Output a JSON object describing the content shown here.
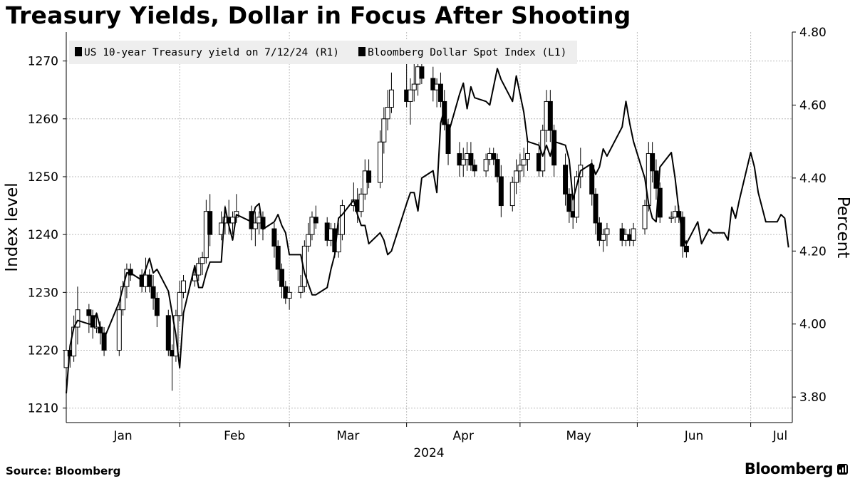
{
  "title": "Treasury Yields, Dollar in Focus After Shooting",
  "source": "Source: Bloomberg",
  "brand": "Bloomberg",
  "colors": {
    "line": "#000000",
    "up_candle_fill": "#ffffff",
    "down_candle_fill": "#000000",
    "grid": "#bbbbbb",
    "legend_bg": "#eeeeee"
  },
  "chart_data": {
    "type": "line",
    "title": "Treasury Yields, Dollar in Focus After Shooting",
    "legend": {
      "placement": "top-left",
      "entries": [
        "US 10-year Treasury yield on 7/12/24 (R1)",
        "Bloomberg Dollar Spot Index (L1)"
      ]
    },
    "grid": true,
    "x_axis": {
      "labels": [
        "Jan",
        "Feb",
        "Mar",
        "Apr",
        "May",
        "Jun",
        "Jul"
      ],
      "year_label": "2024",
      "range": [
        "2024-01-02",
        "2024-07-12"
      ]
    },
    "y_left": {
      "label": "Index level",
      "ticks": [
        1210,
        1220,
        1230,
        1240,
        1250,
        1260,
        1270
      ],
      "range": [
        1207.5,
        1275
      ]
    },
    "y_right": {
      "label": "Percent",
      "ticks": [
        "3.80",
        "4.00",
        "4.20",
        "4.40",
        "4.60",
        "4.80"
      ],
      "range": [
        3.73,
        4.8
      ]
    },
    "series": [
      {
        "name": "US 10-year Treasury yield on 7/12/24 (R1)",
        "axis": "right",
        "kind": "line",
        "dates": [
          "2024-01-02",
          "2024-01-03",
          "2024-01-04",
          "2024-01-05",
          "2024-01-08",
          "2024-01-09",
          "2024-01-10",
          "2024-01-11",
          "2024-01-12",
          "2024-01-16",
          "2024-01-17",
          "2024-01-18",
          "2024-01-19",
          "2024-01-22",
          "2024-01-23",
          "2024-01-24",
          "2024-01-25",
          "2024-01-26",
          "2024-01-29",
          "2024-01-30",
          "2024-01-31",
          "2024-02-01",
          "2024-02-02",
          "2024-02-05",
          "2024-02-06",
          "2024-02-07",
          "2024-02-08",
          "2024-02-09",
          "2024-02-12",
          "2024-02-13",
          "2024-02-14",
          "2024-02-15",
          "2024-02-16",
          "2024-02-20",
          "2024-02-21",
          "2024-02-22",
          "2024-02-23",
          "2024-02-26",
          "2024-02-27",
          "2024-02-28",
          "2024-02-29",
          "2024-03-01",
          "2024-03-04",
          "2024-03-05",
          "2024-03-06",
          "2024-03-07",
          "2024-03-08",
          "2024-03-11",
          "2024-03-12",
          "2024-03-13",
          "2024-03-14",
          "2024-03-15",
          "2024-03-18",
          "2024-03-19",
          "2024-03-20",
          "2024-03-21",
          "2024-03-22",
          "2024-03-25",
          "2024-03-26",
          "2024-03-27",
          "2024-03-28",
          "2024-04-01",
          "2024-04-02",
          "2024-04-03",
          "2024-04-04",
          "2024-04-05",
          "2024-04-08",
          "2024-04-09",
          "2024-04-10",
          "2024-04-11",
          "2024-04-12",
          "2024-04-15",
          "2024-04-16",
          "2024-04-17",
          "2024-04-18",
          "2024-04-19",
          "2024-04-22",
          "2024-04-23",
          "2024-04-24",
          "2024-04-25",
          "2024-04-26",
          "2024-04-29",
          "2024-04-30",
          "2024-05-01",
          "2024-05-02",
          "2024-05-03",
          "2024-05-06",
          "2024-05-07",
          "2024-05-08",
          "2024-05-09",
          "2024-05-10",
          "2024-05-13",
          "2024-05-14",
          "2024-05-15",
          "2024-05-16",
          "2024-05-17",
          "2024-05-20",
          "2024-05-21",
          "2024-05-22",
          "2024-05-23",
          "2024-05-24",
          "2024-05-28",
          "2024-05-29",
          "2024-05-30",
          "2024-05-31",
          "2024-06-03",
          "2024-06-04",
          "2024-06-05",
          "2024-06-06",
          "2024-06-07",
          "2024-06-10",
          "2024-06-11",
          "2024-06-12",
          "2024-06-13",
          "2024-06-14",
          "2024-06-17",
          "2024-06-18",
          "2024-06-20",
          "2024-06-21",
          "2024-06-24",
          "2024-06-25",
          "2024-06-26",
          "2024-06-27",
          "2024-06-28",
          "2024-07-01",
          "2024-07-02",
          "2024-07-03",
          "2024-07-05",
          "2024-07-08",
          "2024-07-09",
          "2024-07-10",
          "2024-07-11"
        ],
        "values": [
          3.81,
          3.94,
          3.99,
          4.01,
          4.0,
          4.0,
          4.03,
          3.99,
          3.96,
          4.06,
          4.1,
          4.14,
          4.14,
          4.12,
          4.15,
          4.18,
          4.14,
          4.15,
          4.09,
          4.03,
          3.97,
          3.88,
          4.03,
          4.16,
          4.1,
          4.1,
          4.14,
          4.17,
          4.17,
          4.32,
          4.27,
          4.23,
          4.3,
          4.28,
          4.32,
          4.33,
          4.26,
          4.28,
          4.3,
          4.27,
          4.25,
          4.19,
          4.19,
          4.14,
          4.11,
          4.08,
          4.08,
          4.1,
          4.15,
          4.19,
          4.29,
          4.3,
          4.34,
          4.3,
          4.27,
          4.27,
          4.22,
          4.25,
          4.23,
          4.19,
          4.2,
          4.33,
          4.36,
          4.36,
          4.31,
          4.4,
          4.42,
          4.36,
          4.55,
          4.59,
          4.52,
          4.63,
          4.66,
          4.59,
          4.65,
          4.62,
          4.61,
          4.6,
          4.65,
          4.7,
          4.67,
          4.61,
          4.68,
          4.63,
          4.58,
          4.5,
          4.49,
          4.46,
          4.49,
          4.46,
          4.5,
          4.49,
          4.45,
          4.34,
          4.38,
          4.42,
          4.44,
          4.41,
          4.43,
          4.48,
          4.46,
          4.54,
          4.61,
          4.55,
          4.5,
          4.4,
          4.33,
          4.29,
          4.28,
          4.43,
          4.47,
          4.4,
          4.31,
          4.24,
          4.22,
          4.28,
          4.22,
          4.26,
          4.25,
          4.25,
          4.23,
          4.32,
          4.29,
          4.34,
          4.47,
          4.43,
          4.36,
          4.28,
          4.28,
          4.3,
          4.29,
          4.21
        ],
        "last_value": 4.21
      },
      {
        "name": "Bloomberg Dollar Spot Index (L1)",
        "axis": "left",
        "kind": "candlestick",
        "note": "daily candles; hollow = close above open, filled = close below open",
        "approx_ohlc_daily": [
          [
            1217,
            1222,
            1216,
            1220
          ],
          [
            1220,
            1221,
            1217,
            1219
          ],
          [
            1219,
            1226,
            1218,
            1224
          ],
          [
            1224,
            1231,
            1221,
            1227
          ],
          [
            1227,
            1228,
            1223,
            1226
          ],
          [
            1226,
            1227,
            1222,
            1224
          ],
          [
            1224,
            1226,
            1223,
            1224
          ],
          [
            1224,
            1225,
            1221,
            1223
          ],
          [
            1223,
            1224,
            1219,
            1220
          ],
          [
            1220,
            1228,
            1219,
            1227
          ],
          [
            1227,
            1232,
            1226,
            1231
          ],
          [
            1231,
            1235,
            1229,
            1234
          ],
          [
            1234,
            1235,
            1232,
            1233
          ],
          [
            1233,
            1234,
            1230,
            1231
          ],
          [
            1231,
            1236,
            1230,
            1233
          ],
          [
            1233,
            1234,
            1230,
            1231
          ],
          [
            1231,
            1233,
            1227,
            1229
          ],
          [
            1229,
            1230,
            1224,
            1226
          ],
          [
            1226,
            1227,
            1219,
            1220
          ],
          [
            1220,
            1221,
            1213,
            1219
          ],
          [
            1219,
            1227,
            1218,
            1226
          ],
          [
            1226,
            1232,
            1225,
            1230
          ],
          [
            1230,
            1233,
            1229,
            1232
          ],
          [
            1232,
            1234,
            1231,
            1233
          ],
          [
            1233,
            1236,
            1232,
            1235
          ],
          [
            1235,
            1237,
            1233,
            1236
          ],
          [
            1236,
            1246,
            1235,
            1244
          ],
          [
            1244,
            1247,
            1238,
            1240
          ],
          [
            1240,
            1244,
            1239,
            1242
          ],
          [
            1242,
            1245,
            1240,
            1243
          ],
          [
            1243,
            1246,
            1240,
            1242
          ],
          [
            1242,
            1244,
            1240,
            1243
          ],
          [
            1243,
            1247,
            1242,
            1244
          ],
          [
            1244,
            1245,
            1239,
            1241
          ],
          [
            1241,
            1244,
            1238,
            1242
          ],
          [
            1242,
            1244,
            1240,
            1243
          ],
          [
            1243,
            1244,
            1239,
            1241
          ],
          [
            1241,
            1242,
            1236,
            1238
          ],
          [
            1238,
            1239,
            1232,
            1234
          ],
          [
            1234,
            1235,
            1229,
            1231
          ],
          [
            1231,
            1232,
            1228,
            1229
          ],
          [
            1229,
            1231,
            1227,
            1230
          ],
          [
            1230,
            1233,
            1229,
            1231
          ],
          [
            1231,
            1239,
            1230,
            1238
          ],
          [
            1238,
            1242,
            1237,
            1240
          ],
          [
            1240,
            1244,
            1239,
            1243
          ],
          [
            1243,
            1245,
            1241,
            1242
          ],
          [
            1242,
            1243,
            1238,
            1239
          ],
          [
            1239,
            1242,
            1238,
            1241
          ],
          [
            1241,
            1242,
            1236,
            1237
          ],
          [
            1237,
            1242,
            1236,
            1240
          ],
          [
            1240,
            1246,
            1239,
            1245
          ],
          [
            1245,
            1249,
            1244,
            1246
          ],
          [
            1246,
            1248,
            1242,
            1244
          ],
          [
            1244,
            1248,
            1243,
            1247
          ],
          [
            1247,
            1253,
            1246,
            1251
          ],
          [
            1251,
            1253,
            1248,
            1249
          ],
          [
            1249,
            1258,
            1248,
            1256
          ],
          [
            1256,
            1262,
            1254,
            1260
          ],
          [
            1260,
            1265,
            1258,
            1262
          ],
          [
            1262,
            1268,
            1261,
            1265
          ],
          [
            1265,
            1270,
            1262,
            1263
          ],
          [
            1263,
            1267,
            1259,
            1265
          ],
          [
            1265,
            1270,
            1263,
            1266
          ],
          [
            1266,
            1272,
            1264,
            1269
          ],
          [
            1269,
            1271,
            1266,
            1267
          ],
          [
            1267,
            1269,
            1263,
            1265
          ],
          [
            1265,
            1267,
            1262,
            1266
          ],
          [
            1266,
            1268,
            1262,
            1263
          ],
          [
            1263,
            1265,
            1258,
            1259
          ],
          [
            1259,
            1260,
            1252,
            1254
          ],
          [
            1254,
            1256,
            1250,
            1252
          ],
          [
            1252,
            1255,
            1250,
            1253
          ],
          [
            1253,
            1256,
            1251,
            1254
          ],
          [
            1254,
            1256,
            1251,
            1252
          ],
          [
            1252,
            1253,
            1250,
            1251
          ],
          [
            1251,
            1254,
            1250,
            1253
          ],
          [
            1253,
            1255,
            1252,
            1254
          ],
          [
            1254,
            1255,
            1252,
            1253
          ],
          [
            1253,
            1254,
            1249,
            1250
          ],
          [
            1250,
            1252,
            1243,
            1245
          ],
          [
            1245,
            1250,
            1244,
            1249
          ],
          [
            1249,
            1253,
            1247,
            1251
          ],
          [
            1251,
            1254,
            1249,
            1252
          ],
          [
            1252,
            1255,
            1250,
            1253
          ],
          [
            1253,
            1256,
            1251,
            1254
          ],
          [
            1254,
            1256,
            1250,
            1251
          ],
          [
            1251,
            1259,
            1250,
            1258
          ],
          [
            1258,
            1265,
            1256,
            1263
          ],
          [
            1263,
            1265,
            1256,
            1258
          ],
          [
            1258,
            1259,
            1250,
            1252
          ],
          [
            1252,
            1254,
            1245,
            1247
          ],
          [
            1247,
            1248,
            1242,
            1244
          ],
          [
            1244,
            1246,
            1241,
            1243
          ],
          [
            1243,
            1251,
            1242,
            1250
          ],
          [
            1250,
            1255,
            1248,
            1252
          ],
          [
            1252,
            1253,
            1245,
            1247
          ],
          [
            1247,
            1248,
            1240,
            1242
          ],
          [
            1242,
            1243,
            1238,
            1239
          ],
          [
            1239,
            1241,
            1237,
            1240
          ],
          [
            1240,
            1242,
            1238,
            1241
          ],
          [
            1241,
            1242,
            1238,
            1239
          ],
          [
            1239,
            1241,
            1238,
            1240
          ],
          [
            1240,
            1241,
            1238,
            1239
          ],
          [
            1239,
            1242,
            1238,
            1241
          ],
          [
            1241,
            1246,
            1240,
            1245
          ],
          [
            1245,
            1256,
            1244,
            1254
          ],
          [
            1254,
            1256,
            1249,
            1251
          ],
          [
            1251,
            1253,
            1246,
            1248
          ],
          [
            1248,
            1249,
            1242,
            1243
          ],
          [
            1243,
            1244,
            1242,
            1243
          ],
          [
            1243,
            1245,
            1242,
            1244
          ],
          [
            1244,
            1245,
            1242,
            1243
          ],
          [
            1243,
            1244,
            1236,
            1238
          ],
          [
            1238,
            1239,
            1236,
            1237
          ]
        ]
      }
    ]
  }
}
